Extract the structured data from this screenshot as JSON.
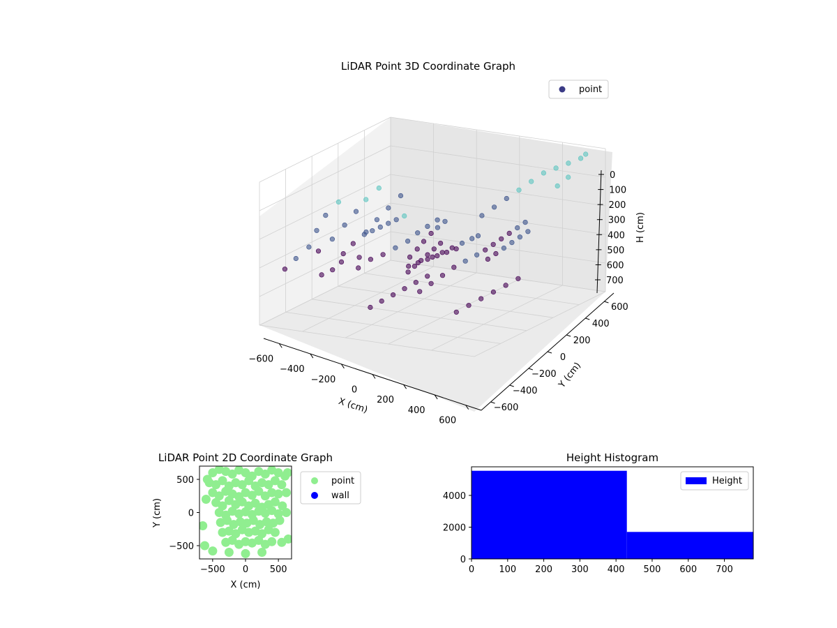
{
  "chart_data": [
    {
      "type": "scatter",
      "title": "LiDAR Point 3D Coordinate Graph",
      "xlabel": "X (cm)",
      "ylabel": "Y (cm)",
      "zlabel": "H (cm)",
      "xlim": [
        -700,
        700
      ],
      "ylim": [
        -700,
        700
      ],
      "zlim": [
        0,
        780
      ],
      "x_ticks": [
        "−600",
        "−400",
        "−200",
        "0",
        "200",
        "400",
        "600"
      ],
      "y_ticks": [
        "−600",
        "−400",
        "−200",
        "0",
        "200",
        "400",
        "600"
      ],
      "z_ticks": [
        "0",
        "100",
        "200",
        "300",
        "400",
        "500",
        "600",
        "700"
      ],
      "legend": [
        {
          "label": "point",
          "color": "#3b3b86"
        }
      ],
      "legend_position": "top-right",
      "grid": true,
      "colormap_colors": [
        "#440154",
        "#3b528b",
        "#5cc5c0"
      ],
      "series": [
        {
          "name": "point",
          "points": [
            [
              -620,
              -560,
              500
            ],
            [
              -560,
              -540,
              440
            ],
            [
              -500,
              -500,
              380
            ],
            [
              -480,
              -450,
              300
            ],
            [
              -440,
              -420,
              220
            ],
            [
              -380,
              -380,
              150
            ],
            [
              -560,
              -300,
              460
            ],
            [
              -500,
              -250,
              400
            ],
            [
              -450,
              -200,
              330
            ],
            [
              -400,
              -160,
              260
            ],
            [
              -360,
              -120,
              200
            ],
            [
              -300,
              -80,
              140
            ],
            [
              -520,
              -100,
              520
            ],
            [
              -480,
              -60,
              470
            ],
            [
              -420,
              -20,
              410
            ],
            [
              -380,
              30,
              350
            ],
            [
              -330,
              70,
              290
            ],
            [
              -280,
              120,
              230
            ],
            [
              -600,
              -200,
              620
            ],
            [
              -560,
              -150,
              600
            ],
            [
              -520,
              -120,
              560
            ],
            [
              -440,
              -60,
              540
            ],
            [
              -300,
              -300,
              520
            ],
            [
              -250,
              -250,
              480
            ],
            [
              -200,
              -200,
              460
            ],
            [
              -150,
              -150,
              430
            ],
            [
              -100,
              -100,
              400
            ],
            [
              -60,
              -60,
              360
            ],
            [
              -20,
              -20,
              330
            ],
            [
              20,
              20,
              300
            ],
            [
              -250,
              150,
              650
            ],
            [
              -220,
              170,
              620
            ],
            [
              -190,
              190,
              590
            ],
            [
              -160,
              210,
              560
            ],
            [
              -130,
              230,
              530
            ],
            [
              -100,
              250,
              500
            ],
            [
              -300,
              250,
              600
            ],
            [
              -270,
              280,
              560
            ],
            [
              -240,
              300,
              520
            ],
            [
              -210,
              330,
              480
            ],
            [
              -180,
              350,
              450
            ],
            [
              -150,
              380,
              420
            ],
            [
              100,
              -300,
              600
            ],
            [
              150,
              -260,
              560
            ],
            [
              200,
              -220,
              520
            ],
            [
              250,
              -180,
              480
            ],
            [
              300,
              -140,
              450
            ],
            [
              350,
              -100,
              420
            ],
            [
              400,
              -400,
              650
            ],
            [
              450,
              -350,
              620
            ],
            [
              500,
              -300,
              590
            ],
            [
              550,
              -250,
              560
            ],
            [
              600,
              -200,
              530
            ],
            [
              650,
              -150,
              500
            ],
            [
              -100,
              -500,
              660
            ],
            [
              -50,
              -460,
              630
            ],
            [
              0,
              -420,
              600
            ],
            [
              50,
              -380,
              570
            ],
            [
              100,
              -340,
              540
            ],
            [
              150,
              -300,
              510
            ],
            [
              200,
              200,
              300
            ],
            [
              250,
              250,
              260
            ],
            [
              300,
              300,
              220
            ],
            [
              350,
              350,
              180
            ],
            [
              400,
              400,
              140
            ],
            [
              450,
              450,
              100
            ],
            [
              500,
              500,
              80
            ],
            [
              550,
              550,
              60
            ],
            [
              600,
              600,
              40
            ],
            [
              620,
              620,
              20
            ],
            [
              580,
              500,
              120
            ],
            [
              540,
              450,
              160
            ],
            [
              300,
              100,
              500
            ],
            [
              340,
              120,
              470
            ],
            [
              380,
              140,
              440
            ],
            [
              420,
              160,
              410
            ],
            [
              460,
              180,
              380
            ],
            [
              500,
              200,
              350
            ],
            [
              100,
              400,
              550
            ],
            [
              140,
              420,
              520
            ],
            [
              180,
              440,
              490
            ],
            [
              220,
              460,
              460
            ],
            [
              260,
              480,
              430
            ],
            [
              300,
              500,
              400
            ],
            [
              -400,
              400,
              700
            ],
            [
              -350,
              420,
              680
            ],
            [
              -300,
              440,
              660
            ],
            [
              -250,
              460,
              640
            ],
            [
              -200,
              480,
              620
            ],
            [
              -150,
              500,
              600
            ],
            [
              0,
              0,
              500
            ],
            [
              40,
              40,
              480
            ],
            [
              80,
              80,
              460
            ],
            [
              120,
              120,
              440
            ],
            [
              160,
              160,
              420
            ],
            [
              200,
              160,
              400
            ],
            [
              -200,
              -400,
              300
            ],
            [
              -160,
              -380,
              280
            ],
            [
              -120,
              -360,
              260
            ],
            [
              -80,
              -340,
              240
            ],
            [
              -40,
              -320,
              220
            ],
            [
              0,
              -300,
              200
            ]
          ]
        }
      ]
    },
    {
      "type": "scatter",
      "title": "LiDAR Point 2D Coordinate Graph",
      "xlabel": "X (cm)",
      "ylabel": "Y (cm)",
      "xlim": [
        -700,
        700
      ],
      "ylim": [
        -700,
        700
      ],
      "x_ticks": [
        -500,
        0,
        500
      ],
      "y_ticks": [
        -500,
        0,
        500
      ],
      "legend": [
        {
          "label": "point",
          "color": "#90ee90"
        },
        {
          "label": "wall",
          "color": "#0000ff"
        }
      ],
      "legend_position": "right",
      "series": [
        {
          "name": "point",
          "points": [
            [
              -500,
              600
            ],
            [
              -400,
              650
            ],
            [
              -300,
              620
            ],
            [
              -200,
              580
            ],
            [
              -100,
              640
            ],
            [
              0,
              600
            ],
            [
              100,
              550
            ],
            [
              200,
              620
            ],
            [
              300,
              580
            ],
            [
              400,
              640
            ],
            [
              500,
              600
            ],
            [
              600,
              550
            ],
            [
              -550,
              450
            ],
            [
              -450,
              420
            ],
            [
              -350,
              480
            ],
            [
              -250,
              400
            ],
            [
              -150,
              450
            ],
            [
              -50,
              420
            ],
            [
              50,
              480
            ],
            [
              150,
              400
            ],
            [
              250,
              450
            ],
            [
              350,
              420
            ],
            [
              450,
              480
            ],
            [
              550,
              420
            ],
            [
              -500,
              300
            ],
            [
              -400,
              250
            ],
            [
              -300,
              320
            ],
            [
              -200,
              280
            ],
            [
              -100,
              240
            ],
            [
              0,
              300
            ],
            [
              100,
              260
            ],
            [
              200,
              320
            ],
            [
              300,
              250
            ],
            [
              400,
              300
            ],
            [
              500,
              280
            ],
            [
              620,
              300
            ],
            [
              -450,
              150
            ],
            [
              -350,
              100
            ],
            [
              -250,
              180
            ],
            [
              -150,
              120
            ],
            [
              -50,
              160
            ],
            [
              50,
              100
            ],
            [
              150,
              140
            ],
            [
              250,
              80
            ],
            [
              350,
              120
            ],
            [
              450,
              160
            ],
            [
              560,
              100
            ],
            [
              -400,
              0
            ],
            [
              -300,
              -40
            ],
            [
              -200,
              20
            ],
            [
              -100,
              -20
            ],
            [
              0,
              10
            ],
            [
              100,
              -30
            ],
            [
              200,
              20
            ],
            [
              300,
              -10
            ],
            [
              400,
              30
            ],
            [
              500,
              -20
            ],
            [
              620,
              0
            ],
            [
              -380,
              -150
            ],
            [
              -280,
              -120
            ],
            [
              -180,
              -180
            ],
            [
              -80,
              -140
            ],
            [
              20,
              -160
            ],
            [
              120,
              -120
            ],
            [
              220,
              -180
            ],
            [
              320,
              -140
            ],
            [
              420,
              -160
            ],
            [
              520,
              -120
            ],
            [
              -350,
              -300
            ],
            [
              -250,
              -280
            ],
            [
              -150,
              -320
            ],
            [
              -50,
              -260
            ],
            [
              50,
              -300
            ],
            [
              150,
              -280
            ],
            [
              250,
              -320
            ],
            [
              350,
              -260
            ],
            [
              450,
              -300
            ],
            [
              -300,
              -450
            ],
            [
              -200,
              -420
            ],
            [
              -100,
              -480
            ],
            [
              0,
              -440
            ],
            [
              100,
              -460
            ],
            [
              200,
              -420
            ],
            [
              300,
              -480
            ],
            [
              400,
              -440
            ],
            [
              550,
              -450
            ],
            [
              -650,
              -200
            ],
            [
              -620,
              -500
            ],
            [
              -600,
              200
            ],
            [
              -580,
              500
            ],
            [
              650,
              -400
            ],
            [
              640,
              600
            ],
            [
              -250,
              -600
            ],
            [
              250,
              -600
            ],
            [
              0,
              -620
            ],
            [
              -500,
              -580
            ]
          ]
        },
        {
          "name": "wall",
          "points": []
        }
      ]
    },
    {
      "type": "bar",
      "title": "Height Histogram",
      "xlabel": "",
      "ylabel": "",
      "xlim": [
        0,
        780
      ],
      "ylim": [
        0,
        5800
      ],
      "x_ticks": [
        0,
        100,
        200,
        300,
        400,
        500,
        600,
        700
      ],
      "y_ticks": [
        0,
        2000,
        4000
      ],
      "bins": [
        {
          "start": 0,
          "end": 430,
          "count": 5550
        },
        {
          "start": 430,
          "end": 780,
          "count": 1700
        }
      ],
      "legend": [
        {
          "label": "Height",
          "color": "#0000ff"
        }
      ],
      "legend_position": "top-right"
    }
  ]
}
